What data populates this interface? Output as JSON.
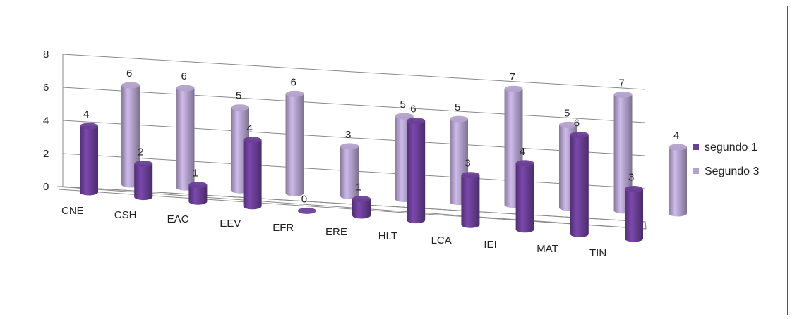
{
  "chart_data": {
    "type": "bar",
    "title": "",
    "xlabel": "",
    "ylabel": "",
    "ylim": [
      0,
      8
    ],
    "yticks": [
      0,
      2,
      4,
      6,
      8
    ],
    "grid": true,
    "legend": "right",
    "categories": [
      "CNE",
      "CSH",
      "EAC",
      "EEV",
      "EFR",
      "ERE",
      "HLT",
      "LCA",
      "IEI",
      "MAT",
      "TIN"
    ],
    "series": [
      {
        "name": "segundo 1",
        "color": "#6b3f96",
        "values": [
          4,
          2,
          1,
          4,
          0,
          1,
          6,
          3,
          4,
          6,
          3
        ]
      },
      {
        "name": "Segundo 3",
        "color": "#b3a2cc",
        "values": [
          6,
          6,
          5,
          6,
          3,
          5,
          5,
          7,
          5,
          7,
          4
        ]
      }
    ]
  }
}
